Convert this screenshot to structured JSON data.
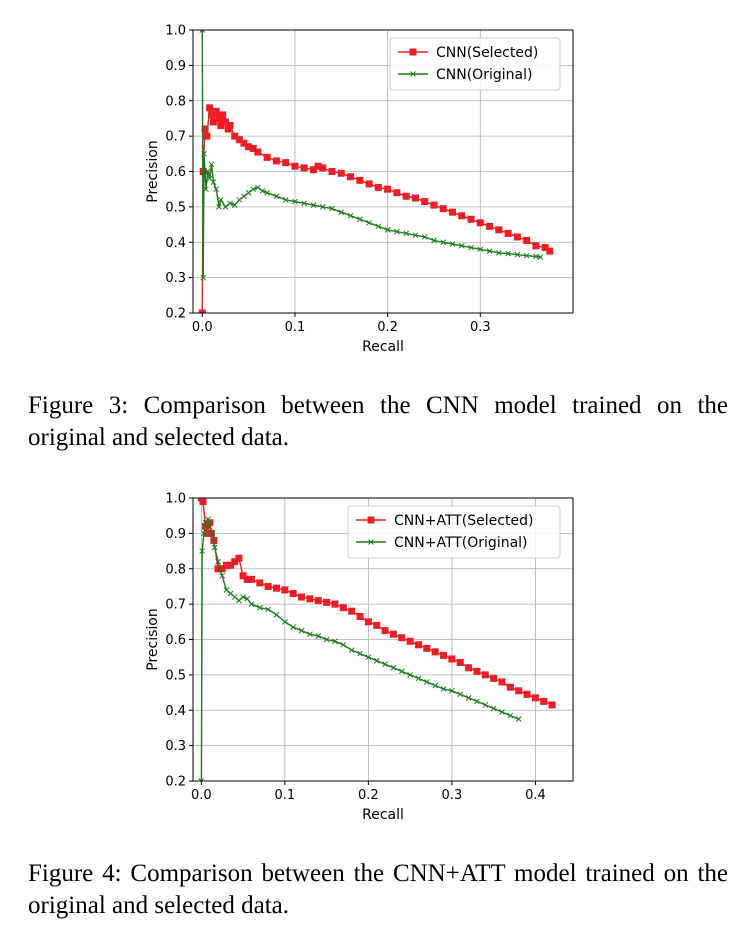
{
  "chart_data": [
    {
      "type": "line",
      "xlabel": "Recall",
      "ylabel": "Precision",
      "xlim": [
        -0.01,
        0.4
      ],
      "ylim": [
        0.2,
        1.0
      ],
      "xticks": [
        "0.0",
        "0.1",
        "0.2",
        "0.3"
      ],
      "xtick_values": [
        0.0,
        0.1,
        0.2,
        0.3
      ],
      "yticks": [
        "0.2",
        "0.3",
        "0.4",
        "0.5",
        "0.6",
        "0.7",
        "0.8",
        "0.9",
        "1.0"
      ],
      "ytick_values": [
        0.2,
        0.3,
        0.4,
        0.5,
        0.6,
        0.7,
        0.8,
        0.9,
        1.0
      ],
      "grid": true,
      "legend_position": "top-right",
      "series": [
        {
          "name": "CNN(Selected)",
          "color": "#ee1c25",
          "marker": "square",
          "x": [
            0.0,
            0.001,
            0.003,
            0.005,
            0.008,
            0.01,
            0.012,
            0.015,
            0.018,
            0.02,
            0.022,
            0.025,
            0.028,
            0.03,
            0.035,
            0.04,
            0.045,
            0.05,
            0.055,
            0.06,
            0.07,
            0.08,
            0.09,
            0.1,
            0.11,
            0.12,
            0.125,
            0.13,
            0.14,
            0.15,
            0.16,
            0.17,
            0.18,
            0.19,
            0.2,
            0.21,
            0.22,
            0.23,
            0.24,
            0.25,
            0.26,
            0.27,
            0.28,
            0.29,
            0.3,
            0.31,
            0.32,
            0.33,
            0.34,
            0.35,
            0.36,
            0.37,
            0.375
          ],
          "y": [
            0.2,
            0.6,
            0.72,
            0.7,
            0.78,
            0.76,
            0.74,
            0.77,
            0.75,
            0.73,
            0.76,
            0.74,
            0.72,
            0.73,
            0.7,
            0.69,
            0.68,
            0.67,
            0.665,
            0.655,
            0.64,
            0.63,
            0.625,
            0.615,
            0.61,
            0.605,
            0.615,
            0.61,
            0.6,
            0.595,
            0.585,
            0.575,
            0.565,
            0.555,
            0.55,
            0.54,
            0.53,
            0.525,
            0.515,
            0.505,
            0.495,
            0.485,
            0.475,
            0.465,
            0.455,
            0.445,
            0.435,
            0.425,
            0.415,
            0.405,
            0.39,
            0.385,
            0.375
          ]
        },
        {
          "name": "CNN(Original)",
          "color": "#1e7a1e",
          "marker": "x",
          "x": [
            0.0,
            0.001,
            0.002,
            0.004,
            0.006,
            0.008,
            0.01,
            0.012,
            0.015,
            0.018,
            0.02,
            0.025,
            0.03,
            0.035,
            0.04,
            0.045,
            0.05,
            0.055,
            0.06,
            0.065,
            0.07,
            0.08,
            0.09,
            0.1,
            0.11,
            0.12,
            0.13,
            0.14,
            0.15,
            0.16,
            0.17,
            0.18,
            0.19,
            0.2,
            0.21,
            0.22,
            0.23,
            0.24,
            0.25,
            0.26,
            0.27,
            0.28,
            0.29,
            0.3,
            0.31,
            0.32,
            0.33,
            0.34,
            0.35,
            0.36,
            0.365
          ],
          "y": [
            1.0,
            0.3,
            0.65,
            0.55,
            0.6,
            0.58,
            0.62,
            0.57,
            0.55,
            0.5,
            0.52,
            0.5,
            0.51,
            0.505,
            0.52,
            0.53,
            0.54,
            0.55,
            0.555,
            0.545,
            0.54,
            0.53,
            0.52,
            0.515,
            0.51,
            0.505,
            0.5,
            0.495,
            0.485,
            0.475,
            0.465,
            0.455,
            0.445,
            0.435,
            0.43,
            0.425,
            0.42,
            0.415,
            0.405,
            0.4,
            0.395,
            0.39,
            0.385,
            0.38,
            0.375,
            0.37,
            0.368,
            0.365,
            0.362,
            0.36,
            0.358
          ]
        }
      ]
    },
    {
      "type": "line",
      "xlabel": "Recall",
      "ylabel": "Precision",
      "xlim": [
        -0.01,
        0.445
      ],
      "ylim": [
        0.2,
        1.0
      ],
      "xticks": [
        "0.0",
        "0.1",
        "0.2",
        "0.3",
        "0.4"
      ],
      "xtick_values": [
        0.0,
        0.1,
        0.2,
        0.3,
        0.4
      ],
      "yticks": [
        "0.2",
        "0.3",
        "0.4",
        "0.5",
        "0.6",
        "0.7",
        "0.8",
        "0.9",
        "1.0"
      ],
      "ytick_values": [
        0.2,
        0.3,
        0.4,
        0.5,
        0.6,
        0.7,
        0.8,
        0.9,
        1.0
      ],
      "grid": true,
      "legend_position": "top-right",
      "series": [
        {
          "name": "CNN+ATT(Selected)",
          "color": "#ee1c25",
          "marker": "square",
          "x": [
            0.0,
            0.002,
            0.005,
            0.008,
            0.01,
            0.012,
            0.015,
            0.02,
            0.025,
            0.03,
            0.035,
            0.04,
            0.045,
            0.05,
            0.055,
            0.06,
            0.07,
            0.08,
            0.09,
            0.1,
            0.11,
            0.12,
            0.13,
            0.14,
            0.15,
            0.16,
            0.17,
            0.18,
            0.19,
            0.2,
            0.21,
            0.22,
            0.23,
            0.24,
            0.25,
            0.26,
            0.27,
            0.28,
            0.29,
            0.3,
            0.31,
            0.32,
            0.33,
            0.34,
            0.35,
            0.36,
            0.37,
            0.38,
            0.39,
            0.4,
            0.41,
            0.42
          ],
          "y": [
            1.0,
            0.99,
            0.92,
            0.9,
            0.93,
            0.9,
            0.88,
            0.8,
            0.8,
            0.81,
            0.81,
            0.82,
            0.83,
            0.78,
            0.77,
            0.77,
            0.76,
            0.75,
            0.745,
            0.74,
            0.73,
            0.72,
            0.715,
            0.71,
            0.705,
            0.7,
            0.69,
            0.68,
            0.665,
            0.65,
            0.64,
            0.625,
            0.615,
            0.605,
            0.595,
            0.585,
            0.575,
            0.565,
            0.555,
            0.545,
            0.535,
            0.52,
            0.51,
            0.5,
            0.49,
            0.48,
            0.465,
            0.455,
            0.445,
            0.435,
            0.425,
            0.415
          ]
        },
        {
          "name": "CNN+ATT(Original)",
          "color": "#1e7a1e",
          "marker": "x",
          "x": [
            0.0,
            0.001,
            0.003,
            0.005,
            0.008,
            0.01,
            0.013,
            0.016,
            0.02,
            0.025,
            0.03,
            0.035,
            0.04,
            0.045,
            0.05,
            0.055,
            0.06,
            0.07,
            0.08,
            0.09,
            0.1,
            0.11,
            0.12,
            0.13,
            0.14,
            0.15,
            0.16,
            0.17,
            0.18,
            0.19,
            0.2,
            0.21,
            0.22,
            0.23,
            0.24,
            0.25,
            0.26,
            0.27,
            0.28,
            0.29,
            0.3,
            0.31,
            0.32,
            0.33,
            0.34,
            0.35,
            0.36,
            0.37,
            0.38
          ],
          "y": [
            0.2,
            0.85,
            0.9,
            0.93,
            0.94,
            0.92,
            0.9,
            0.86,
            0.82,
            0.78,
            0.74,
            0.73,
            0.72,
            0.71,
            0.72,
            0.715,
            0.7,
            0.69,
            0.685,
            0.67,
            0.65,
            0.635,
            0.625,
            0.615,
            0.61,
            0.6,
            0.595,
            0.585,
            0.57,
            0.56,
            0.55,
            0.54,
            0.53,
            0.52,
            0.51,
            0.5,
            0.49,
            0.48,
            0.47,
            0.46,
            0.455,
            0.445,
            0.435,
            0.425,
            0.415,
            0.405,
            0.395,
            0.385,
            0.375
          ]
        }
      ]
    }
  ],
  "captions": {
    "figure3": "Figure 3: Comparison between the CNN model trained on the original and selected data.",
    "figure4": "Figure 4: Comparison between the CNN+ATT model trained on the original and selected data."
  }
}
